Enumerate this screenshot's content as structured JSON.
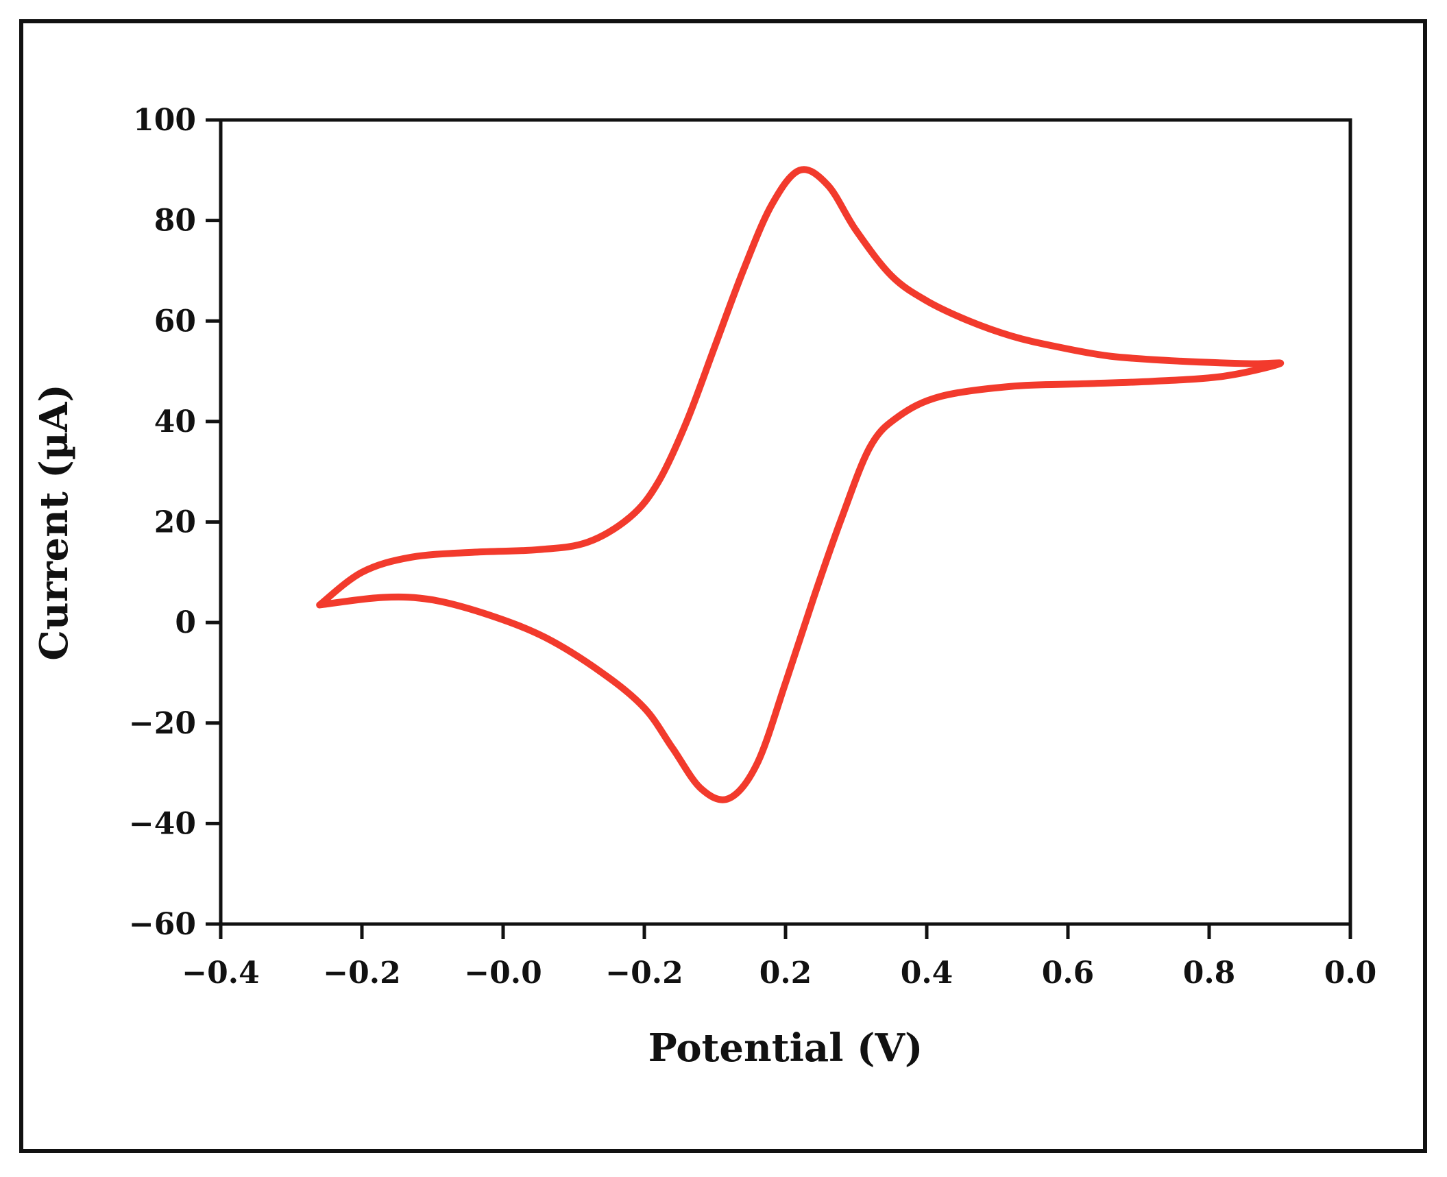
{
  "chart_data": {
    "type": "line",
    "title": "",
    "xlabel": "Potential (V)",
    "ylabel": "Current (µA)",
    "x_tick_labels": [
      "−0.4",
      "−0.2",
      "−0.0",
      "−0.2",
      "0.2",
      "0.4",
      "0.6",
      "0.8",
      "0.0",
      "0.8"
    ],
    "y_ticks": [
      100,
      80,
      60,
      40,
      20,
      0,
      -20,
      -40,
      -60
    ],
    "y_tick_labels": [
      "100",
      "80",
      "60",
      "40",
      "20",
      "0",
      "−20",
      "−40",
      "−60"
    ],
    "ylim": [
      -60,
      100
    ],
    "grid": false,
    "legend": "none",
    "color": "#f23a2c",
    "series": [
      {
        "x": [
          -0.26,
          -0.2,
          -0.13,
          -0.04,
          0.05,
          0.12,
          0.18,
          0.22,
          0.26,
          0.3,
          0.34,
          0.38,
          0.42,
          0.46,
          0.5,
          0.55,
          0.6,
          0.66,
          0.72,
          0.78,
          0.86,
          0.96,
          1.06,
          1.1,
          1.02,
          0.92,
          0.82,
          0.72,
          0.62,
          0.56,
          0.52,
          0.48,
          0.44,
          0.4,
          0.36,
          0.32,
          0.28,
          0.24,
          0.2,
          0.14,
          0.06,
          -0.02,
          -0.1,
          -0.17,
          -0.26
        ],
        "y": [
          3.5,
          10,
          13,
          14,
          14.5,
          16,
          21,
          28,
          40,
          55,
          70,
          83,
          90,
          87,
          78,
          69,
          64,
          60,
          57,
          55,
          53,
          52,
          51.5,
          51.5,
          49,
          48,
          47.5,
          47,
          45,
          41,
          35,
          21,
          5,
          -12,
          -28,
          -35,
          -33,
          -25,
          -17,
          -10,
          -3,
          1.5,
          4.5,
          5,
          3.5
        ]
      }
    ]
  }
}
